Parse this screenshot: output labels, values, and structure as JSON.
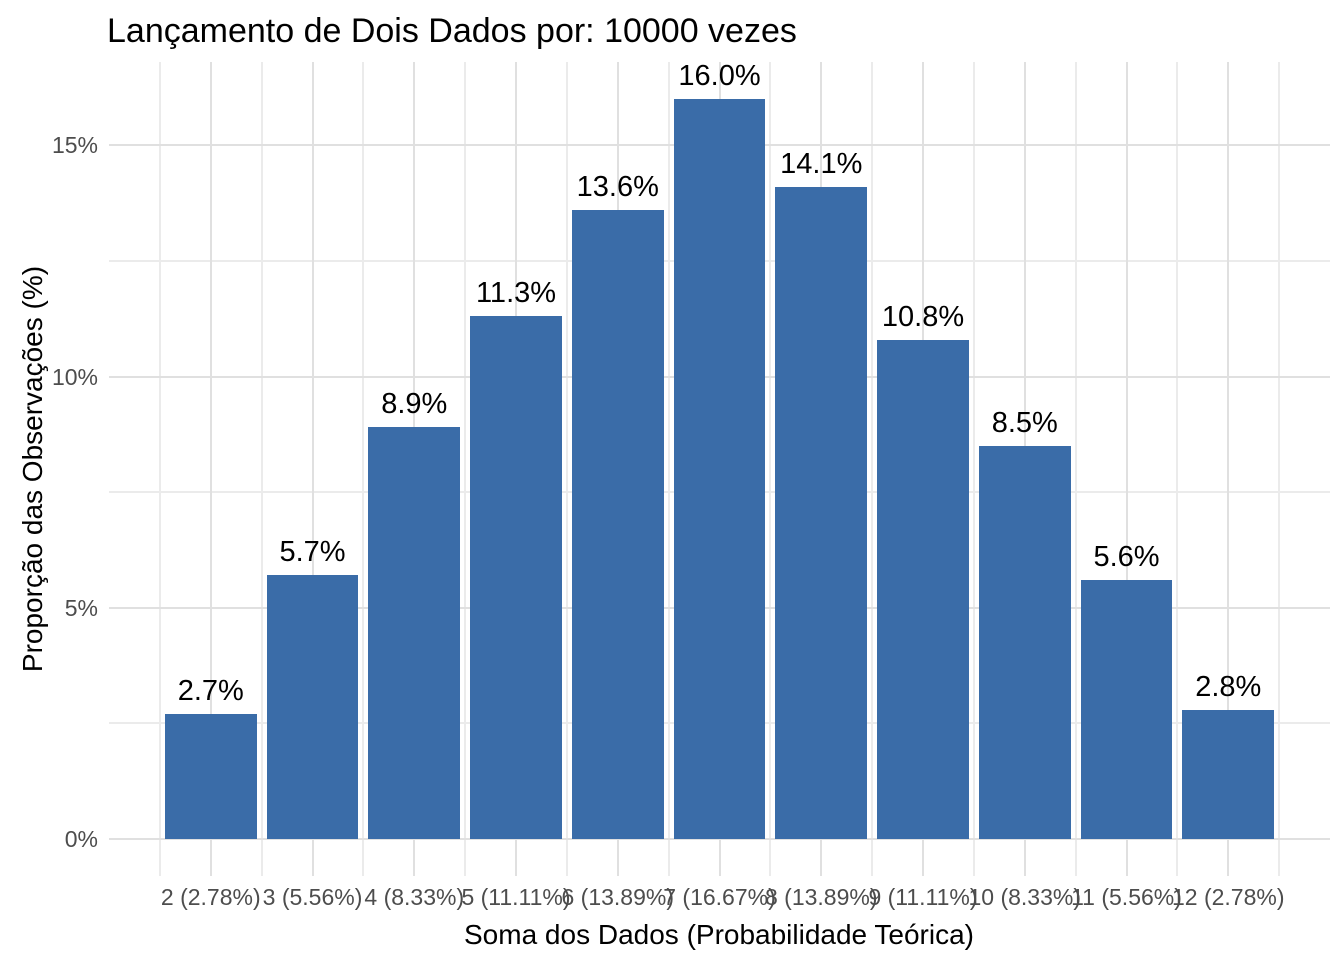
{
  "page_title": "Lançamento de Dois Dados por: 10000 vezes",
  "chart_data": {
    "type": "bar",
    "title": "Lançamento de Dois Dados por: 10000 vezes",
    "xlabel": "Soma dos Dados (Probabilidade Teórica)",
    "ylabel": "Proporção das Observações (%)",
    "categories": [
      "2 (2.78%)",
      "3 (5.56%)",
      "4 (8.33%)",
      "5 (11.11%)",
      "6 (13.89%)",
      "7 (16.67%)",
      "8 (13.89%)",
      "9 (11.11%)",
      "10 (8.33%)",
      "11 (5.56%)",
      "12 (2.78%)"
    ],
    "values": [
      2.7,
      5.7,
      8.9,
      11.3,
      13.6,
      16.0,
      14.1,
      10.8,
      8.5,
      5.6,
      2.8
    ],
    "bar_labels": [
      "2.7%",
      "5.7%",
      "8.9%",
      "11.3%",
      "13.6%",
      "16.0%",
      "14.1%",
      "10.8%",
      "8.5%",
      "5.6%",
      "2.8%"
    ],
    "y_axis": {
      "ticks": [
        {
          "value": 0,
          "label": "0%"
        },
        {
          "value": 5,
          "label": "5%"
        },
        {
          "value": 10,
          "label": "10%"
        },
        {
          "value": 15,
          "label": "15%"
        }
      ],
      "minor_ticks": [
        2.5,
        7.5,
        12.5
      ],
      "range": [
        0,
        16
      ]
    },
    "grid": "major-and-minor",
    "legend": "none",
    "colors": {
      "bar": "#3A6CA8",
      "grid_major": "#E0E0E0",
      "grid_minor": "#EBEBEB",
      "tick_text": "#4D4D4D",
      "title_text": "#000000",
      "background": "#FFFFFF"
    }
  }
}
